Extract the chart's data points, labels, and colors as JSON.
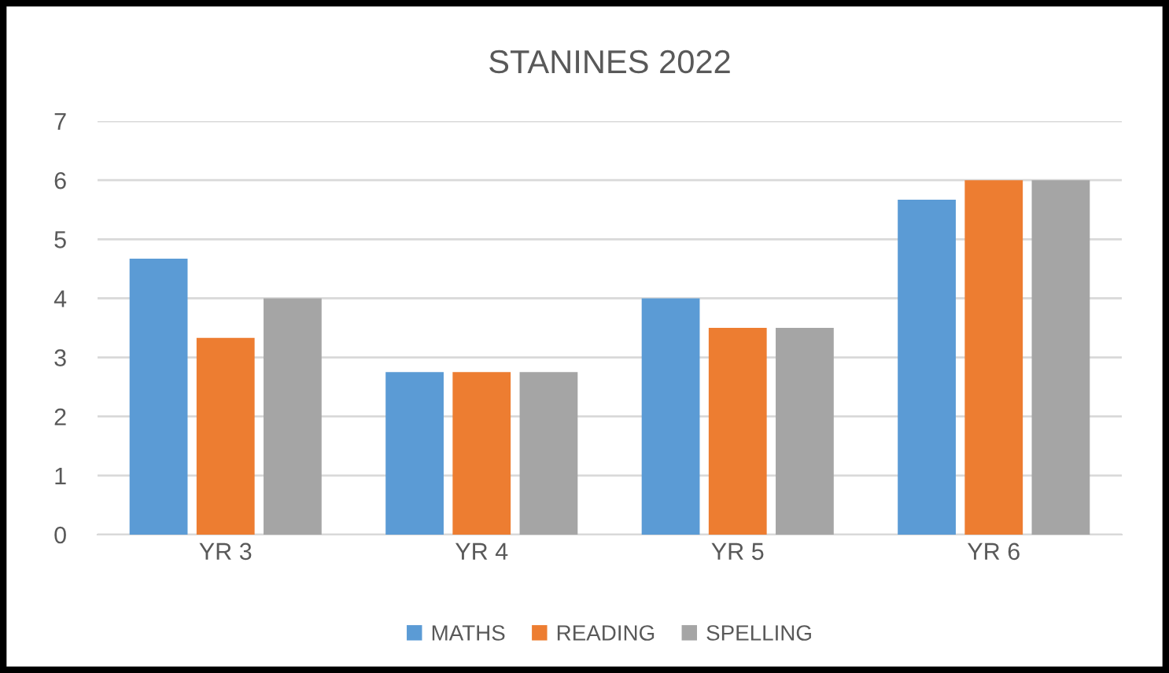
{
  "chart_data": {
    "type": "bar",
    "title": "STANINES 2022",
    "categories": [
      "YR 3",
      "YR 4",
      "YR 5",
      "YR 6"
    ],
    "series": [
      {
        "name": "MATHS",
        "color": "#5b9bd5",
        "values": [
          4.67,
          2.75,
          4,
          5.67
        ]
      },
      {
        "name": "READING",
        "color": "#ed7d31",
        "values": [
          3.33,
          2.75,
          3.5,
          6
        ]
      },
      {
        "name": "SPELLING",
        "color": "#a5a5a5",
        "values": [
          4,
          2.75,
          3.5,
          6
        ]
      }
    ],
    "ylim": [
      0,
      7
    ],
    "yticks": [
      0,
      1,
      2,
      3,
      4,
      5,
      6,
      7
    ],
    "grid": "y",
    "legend": "bottom"
  }
}
